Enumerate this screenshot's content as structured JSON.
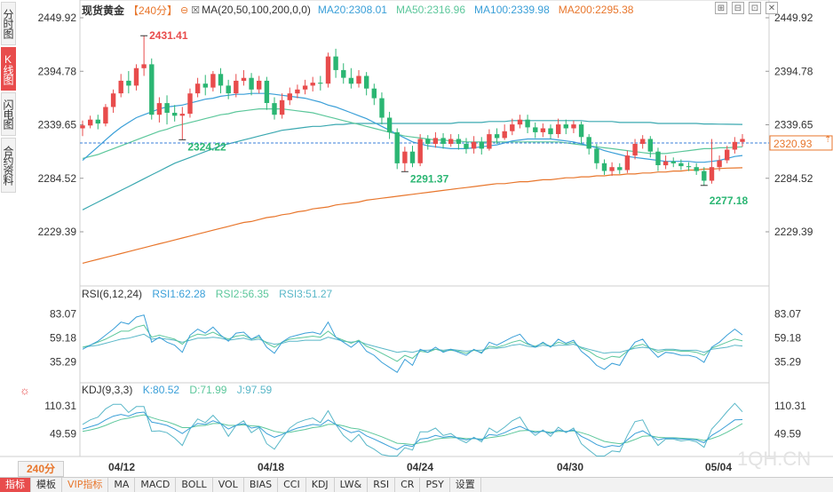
{
  "side_tabs": [
    {
      "label": "分时图",
      "active": false
    },
    {
      "label": "K线图",
      "active": true
    },
    {
      "label": "闪电图",
      "active": false
    },
    {
      "label": "合约资料",
      "active": false
    }
  ],
  "header": {
    "title": "现货黄金",
    "period": "【240分】",
    "ma_label": "MA(20,50,100,200,0,0)",
    "ma20": "MA20:2308.01",
    "ma50": "MA50:2316.96",
    "ma100": "MA100:2339.98",
    "ma200": "MA200:2295.38"
  },
  "price_axis": {
    "left_labels": [
      "2449.92",
      "2394.78",
      "2339.65",
      "2284.52",
      "2229.39"
    ],
    "right_labels": [
      "2449.92",
      "2394.78",
      "2339.65",
      "2284.52",
      "2229.39"
    ],
    "current_price": "2320.93"
  },
  "annotations": {
    "high": "2431.41",
    "low1": "2324.22",
    "low2": "2291.37",
    "low3": "2277.18"
  },
  "rsi": {
    "label": "RSI(6,12,24)",
    "rsi1": "RSI1:62.28",
    "rsi2": "RSI2:56.35",
    "rsi3": "RSI3:51.27",
    "ticks_left": [
      "83.07",
      "59.18",
      "35.29"
    ],
    "ticks_right": [
      "83.07",
      "59.18",
      "35.29"
    ]
  },
  "kdj": {
    "label": "KDJ(9,3,3)",
    "k": "K:80.52",
    "d": "D:71.99",
    "j": "J:97.59",
    "ticks_left": [
      "110.31",
      "49.59"
    ],
    "ticks_right": [
      "110.31",
      "49.59"
    ]
  },
  "x_axis": {
    "period_selector": "240分",
    "dates": [
      "04/12",
      "04/18",
      "04/24",
      "04/30",
      "05/04"
    ]
  },
  "watermark": "1QH.CN",
  "indicator_tabs": [
    "指标",
    "模板",
    "VIP指标",
    "MA",
    "MACD",
    "BOLL",
    "VOL",
    "BIAS",
    "CCI",
    "KDJ",
    "LW&",
    "RSI",
    "CR",
    "PSY",
    "设置"
  ],
  "colors": {
    "up": "#e84c4c",
    "down": "#2bb673",
    "ma20": "#3a9fd8",
    "ma50": "#5cc79b",
    "ma100": "#3aa8b0",
    "ma200": "#e8762c"
  },
  "chart_data": {
    "type": "candlestick",
    "series_note": "",
    "price_ylim": [
      2229.39,
      2449.92
    ],
    "candles": [
      [
        2336,
        2339,
        2328,
        2344
      ],
      [
        2339,
        2345,
        2336,
        2349
      ],
      [
        2345,
        2341,
        2335,
        2350
      ],
      [
        2341,
        2358,
        2338,
        2361
      ],
      [
        2358,
        2372,
        2352,
        2376
      ],
      [
        2372,
        2385,
        2368,
        2392
      ],
      [
        2385,
        2380,
        2372,
        2395
      ],
      [
        2380,
        2398,
        2375,
        2402
      ],
      [
        2398,
        2402,
        2390,
        2431.41
      ],
      [
        2402,
        2350,
        2345,
        2408
      ],
      [
        2350,
        2362,
        2342,
        2368
      ],
      [
        2362,
        2352,
        2340,
        2370
      ],
      [
        2352,
        2349,
        2343,
        2360
      ],
      [
        2349,
        2351,
        2324.22,
        2358
      ],
      [
        2351,
        2372,
        2347,
        2377
      ],
      [
        2372,
        2382,
        2368,
        2388
      ],
      [
        2382,
        2378,
        2370,
        2391
      ],
      [
        2378,
        2392,
        2374,
        2395
      ],
      [
        2392,
        2380,
        2372,
        2398
      ],
      [
        2380,
        2372,
        2366,
        2386
      ],
      [
        2372,
        2385,
        2368,
        2392
      ],
      [
        2385,
        2388,
        2380,
        2396
      ],
      [
        2388,
        2376,
        2370,
        2393
      ],
      [
        2376,
        2385,
        2372,
        2390
      ],
      [
        2385,
        2362,
        2355,
        2389
      ],
      [
        2362,
        2350,
        2345,
        2368
      ],
      [
        2350,
        2365,
        2346,
        2372
      ],
      [
        2365,
        2372,
        2360,
        2378
      ],
      [
        2372,
        2376,
        2367,
        2381
      ],
      [
        2376,
        2380,
        2371,
        2386
      ],
      [
        2380,
        2383,
        2374,
        2389
      ],
      [
        2383,
        2382,
        2375,
        2390
      ],
      [
        2382,
        2410,
        2378,
        2414
      ],
      [
        2410,
        2396,
        2388,
        2418
      ],
      [
        2396,
        2388,
        2382,
        2403
      ],
      [
        2388,
        2382,
        2377,
        2398
      ],
      [
        2382,
        2390,
        2378,
        2396
      ],
      [
        2390,
        2377,
        2370,
        2394
      ],
      [
        2377,
        2367,
        2360,
        2382
      ],
      [
        2367,
        2347,
        2340,
        2373
      ],
      [
        2347,
        2332,
        2325,
        2353
      ],
      [
        2332,
        2300,
        2294,
        2336
      ],
      [
        2300,
        2312,
        2291.37,
        2317
      ],
      [
        2312,
        2300,
        2296,
        2318
      ],
      [
        2300,
        2325,
        2297,
        2330
      ],
      [
        2325,
        2320,
        2314,
        2329
      ],
      [
        2320,
        2326,
        2316,
        2332
      ],
      [
        2326,
        2320,
        2315,
        2331
      ],
      [
        2320,
        2325,
        2317,
        2330
      ],
      [
        2325,
        2320,
        2314,
        2330
      ],
      [
        2320,
        2315,
        2310,
        2326
      ],
      [
        2315,
        2322,
        2310,
        2328
      ],
      [
        2322,
        2315,
        2309,
        2327
      ],
      [
        2315,
        2330,
        2313,
        2335
      ],
      [
        2330,
        2326,
        2320,
        2336
      ],
      [
        2326,
        2333,
        2324,
        2340
      ],
      [
        2333,
        2340,
        2329,
        2346
      ],
      [
        2340,
        2345,
        2336,
        2350
      ],
      [
        2345,
        2337,
        2331,
        2350
      ],
      [
        2337,
        2332,
        2326,
        2342
      ],
      [
        2332,
        2336,
        2327,
        2341
      ],
      [
        2336,
        2330,
        2325,
        2340
      ],
      [
        2330,
        2340,
        2326,
        2346
      ],
      [
        2340,
        2336,
        2330,
        2345
      ],
      [
        2336,
        2340,
        2331,
        2344
      ],
      [
        2340,
        2327,
        2320,
        2343
      ],
      [
        2327,
        2315,
        2309,
        2330
      ],
      [
        2315,
        2300,
        2294,
        2320
      ],
      [
        2300,
        2292,
        2288,
        2304
      ],
      [
        2292,
        2296,
        2287,
        2301
      ],
      [
        2296,
        2293,
        2289,
        2300
      ],
      [
        2293,
        2308,
        2290,
        2313
      ],
      [
        2308,
        2320,
        2304,
        2325
      ],
      [
        2320,
        2325,
        2315,
        2329
      ],
      [
        2325,
        2312,
        2306,
        2328
      ],
      [
        2312,
        2298,
        2292,
        2316
      ],
      [
        2298,
        2302,
        2294,
        2308
      ],
      [
        2302,
        2300,
        2296,
        2306
      ],
      [
        2300,
        2297,
        2293,
        2304
      ],
      [
        2297,
        2296,
        2292,
        2301
      ],
      [
        2296,
        2292,
        2288,
        2300
      ],
      [
        2292,
        2282,
        2277.18,
        2296
      ],
      [
        2282,
        2296,
        2279,
        2325
      ],
      [
        2296,
        2303,
        2292,
        2308
      ],
      [
        2303,
        2314,
        2300,
        2318
      ],
      [
        2314,
        2322,
        2310,
        2327
      ],
      [
        2322,
        2325,
        2317,
        2330
      ]
    ],
    "ma20": [
      2303,
      2310,
      2317,
      2324,
      2331,
      2337,
      2342,
      2347,
      2350,
      2353,
      2356,
      2358,
      2359,
      2360,
      2362,
      2364,
      2366,
      2367,
      2369,
      2370,
      2371,
      2371,
      2372,
      2372,
      2372,
      2371,
      2370,
      2369,
      2368,
      2367,
      2365,
      2363,
      2360,
      2358,
      2355,
      2352,
      2349,
      2346,
      2342,
      2338,
      2334,
      2330,
      2326,
      2322,
      2320,
      2318,
      2317,
      2316,
      2315,
      2315,
      2315,
      2316,
      2317,
      2318,
      2319,
      2321,
      2323,
      2324,
      2325,
      2325,
      2325,
      2325,
      2324,
      2323,
      2322,
      2320,
      2318,
      2316,
      2313,
      2311,
      2309,
      2307,
      2306,
      2305,
      2304,
      2303,
      2302,
      2302,
      2302,
      2302,
      2301,
      2301,
      2302,
      2303,
      2305,
      2307,
      2308.01
    ],
    "ma50": [
      2305,
      2307,
      2309,
      2312,
      2315,
      2318,
      2321,
      2324,
      2327,
      2330,
      2333,
      2335,
      2338,
      2340,
      2342,
      2344,
      2346,
      2348,
      2350,
      2351,
      2353,
      2354,
      2355,
      2356,
      2356,
      2356,
      2356,
      2355,
      2354,
      2353,
      2352,
      2350,
      2348,
      2346,
      2344,
      2342,
      2340,
      2338,
      2336,
      2334,
      2332,
      2330,
      2328,
      2327,
      2326,
      2325,
      2324,
      2324,
      2323,
      2323,
      2322,
      2322,
      2322,
      2322,
      2322,
      2322,
      2322,
      2322,
      2322,
      2322,
      2322,
      2322,
      2322,
      2321,
      2320,
      2319,
      2318,
      2317,
      2316,
      2315,
      2314,
      2313,
      2312,
      2311,
      2310,
      2310,
      2310,
      2311,
      2312,
      2313,
      2314,
      2315,
      2315,
      2316,
      2316,
      2316.5,
      2316.96
    ],
    "ma100": [
      2252,
      2256,
      2260,
      2264,
      2268,
      2272,
      2276,
      2280,
      2284,
      2288,
      2292,
      2296,
      2300,
      2303,
      2306,
      2309,
      2312,
      2315,
      2318,
      2320,
      2322,
      2324,
      2326,
      2328,
      2330,
      2332,
      2334,
      2335,
      2336,
      2337,
      2338,
      2338,
      2339,
      2340,
      2340,
      2341,
      2341,
      2341,
      2341,
      2341,
      2341,
      2341,
      2341,
      2341,
      2341,
      2341,
      2341,
      2341,
      2341,
      2342,
      2342,
      2342,
      2342,
      2343,
      2343,
      2343,
      2344,
      2344,
      2344,
      2344,
      2344,
      2344,
      2344,
      2344,
      2344,
      2344,
      2343,
      2343,
      2343,
      2343,
      2342,
      2342,
      2342,
      2342,
      2342,
      2341,
      2341,
      2341,
      2341,
      2341,
      2341,
      2340.5,
      2340.5,
      2340.3,
      2340.2,
      2340.1,
      2339.98
    ],
    "ma200": [
      2197,
      2199,
      2201,
      2203,
      2205,
      2207,
      2209,
      2211,
      2213,
      2215,
      2217,
      2219,
      2221,
      2223,
      2225,
      2227,
      2229,
      2231,
      2233,
      2235,
      2237,
      2239,
      2240,
      2242,
      2244,
      2245,
      2247,
      2248,
      2250,
      2251,
      2253,
      2254,
      2255,
      2257,
      2258,
      2259,
      2260,
      2262,
      2263,
      2264,
      2265,
      2266,
      2267,
      2268,
      2269,
      2270,
      2271,
      2272,
      2273,
      2274,
      2275,
      2276,
      2277,
      2278,
      2279,
      2279,
      2280,
      2281,
      2281,
      2282,
      2283,
      2283,
      2284,
      2285,
      2285,
      2286,
      2286,
      2287,
      2287,
      2288,
      2288,
      2289,
      2289,
      2290,
      2290,
      2291,
      2291,
      2292,
      2292,
      2293,
      2293,
      2294,
      2294,
      2294.5,
      2295,
      2295.2,
      2295.38
    ],
    "rsi_ylim": [
      20,
      95
    ],
    "rsi1": [
      48,
      52,
      56,
      62,
      68,
      75,
      73,
      80,
      82,
      55,
      60,
      55,
      52,
      45,
      62,
      68,
      64,
      70,
      62,
      56,
      64,
      65,
      58,
      62,
      50,
      44,
      55,
      60,
      62,
      64,
      65,
      63,
      75,
      60,
      55,
      50,
      56,
      46,
      42,
      35,
      30,
      25,
      38,
      32,
      48,
      45,
      50,
      45,
      48,
      45,
      42,
      48,
      44,
      55,
      52,
      56,
      60,
      63,
      54,
      50,
      55,
      50,
      58,
      54,
      57,
      46,
      40,
      32,
      28,
      34,
      32,
      45,
      55,
      58,
      48,
      40,
      45,
      44,
      42,
      42,
      40,
      35,
      50,
      55,
      62,
      68,
      62.28
    ],
    "rsi2": [
      50,
      52,
      55,
      58,
      62,
      66,
      66,
      70,
      72,
      60,
      62,
      60,
      58,
      53,
      60,
      63,
      62,
      65,
      61,
      58,
      61,
      62,
      58,
      60,
      54,
      50,
      55,
      58,
      59,
      60,
      61,
      60,
      66,
      60,
      57,
      54,
      57,
      51,
      48,
      44,
      40,
      36,
      42,
      39,
      46,
      45,
      48,
      46,
      47,
      46,
      44,
      47,
      45,
      51,
      50,
      52,
      55,
      57,
      53,
      51,
      54,
      51,
      55,
      53,
      55,
      49,
      46,
      41,
      38,
      41,
      40,
      46,
      51,
      53,
      49,
      45,
      47,
      47,
      46,
      46,
      45,
      42,
      49,
      52,
      55,
      58,
      56.35
    ],
    "rsi3": [
      50,
      51,
      52,
      54,
      56,
      58,
      59,
      61,
      63,
      58,
      59,
      58,
      57,
      55,
      57,
      59,
      59,
      60,
      59,
      57,
      58,
      59,
      57,
      58,
      55,
      53,
      54,
      56,
      56,
      57,
      57,
      57,
      60,
      58,
      56,
      55,
      56,
      53,
      51,
      49,
      47,
      45,
      46,
      45,
      47,
      47,
      48,
      47,
      48,
      47,
      46,
      47,
      47,
      49,
      49,
      50,
      52,
      53,
      51,
      50,
      52,
      51,
      52,
      52,
      53,
      50,
      48,
      46,
      44,
      45,
      45,
      47,
      49,
      50,
      49,
      47,
      48,
      48,
      47,
      47,
      47,
      45,
      48,
      49,
      50,
      52,
      51.27
    ],
    "kdj_ylim": [
      0,
      130
    ],
    "kdj_k": [
      60,
      65,
      70,
      80,
      88,
      92,
      88,
      95,
      97,
      75,
      72,
      68,
      60,
      50,
      62,
      72,
      70,
      78,
      72,
      60,
      68,
      72,
      62,
      65,
      50,
      42,
      48,
      56,
      62,
      66,
      70,
      68,
      80,
      70,
      60,
      52,
      56,
      45,
      38,
      30,
      22,
      15,
      25,
      22,
      38,
      40,
      46,
      42,
      44,
      40,
      36,
      40,
      36,
      48,
      46,
      52,
      60,
      66,
      58,
      52,
      56,
      50,
      58,
      54,
      58,
      44,
      36,
      26,
      20,
      24,
      22,
      36,
      50,
      56,
      46,
      36,
      40,
      40,
      38,
      38,
      36,
      30,
      46,
      56,
      68,
      80,
      80.52
    ],
    "kdj_d": [
      55,
      58,
      62,
      68,
      75,
      81,
      84,
      88,
      91,
      85,
      80,
      76,
      70,
      63,
      63,
      67,
      68,
      72,
      72,
      68,
      68,
      69,
      67,
      66,
      61,
      55,
      52,
      53,
      56,
      59,
      63,
      65,
      70,
      70,
      67,
      62,
      60,
      55,
      49,
      43,
      36,
      29,
      28,
      26,
      30,
      33,
      38,
      40,
      41,
      41,
      39,
      39,
      38,
      41,
      43,
      46,
      51,
      56,
      57,
      55,
      55,
      53,
      55,
      55,
      56,
      52,
      47,
      40,
      33,
      30,
      28,
      31,
      37,
      44,
      45,
      42,
      41,
      41,
      40,
      39,
      38,
      35,
      39,
      45,
      53,
      62,
      71.99
    ],
    "kdj_j": [
      70,
      80,
      86,
      104,
      114,
      114,
      96,
      109,
      109,
      55,
      56,
      52,
      40,
      24,
      60,
      82,
      74,
      90,
      72,
      44,
      68,
      78,
      52,
      63,
      28,
      16,
      40,
      62,
      74,
      80,
      84,
      74,
      100,
      70,
      46,
      32,
      48,
      25,
      16,
      4,
      -6,
      -13,
      19,
      14,
      54,
      54,
      62,
      46,
      50,
      38,
      30,
      42,
      32,
      62,
      52,
      64,
      78,
      86,
      60,
      46,
      58,
      44,
      64,
      52,
      62,
      28,
      14,
      -2,
      -6,
      12,
      10,
      46,
      76,
      80,
      48,
      24,
      38,
      38,
      34,
      36,
      32,
      20,
      60,
      78,
      98,
      116,
      97.59
    ]
  }
}
